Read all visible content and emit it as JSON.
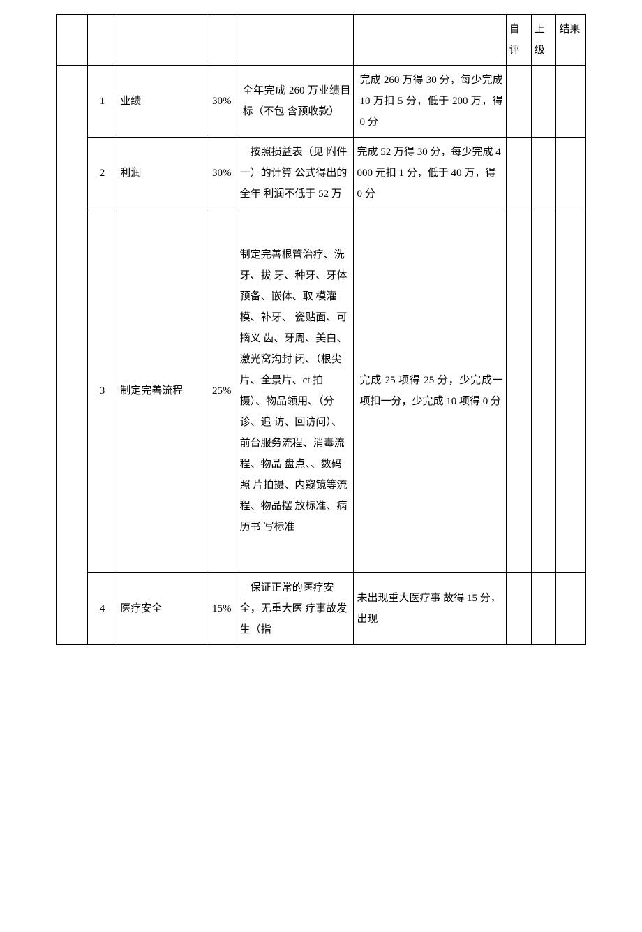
{
  "header": {
    "self": "自评",
    "super": "上级",
    "result": "结果"
  },
  "rows": [
    {
      "num": "1",
      "item": "业绩",
      "weight": "30%",
      "target": "全年完成 260 万业绩目标（不包 含预收款）",
      "standard": "完成 260 万得 30 分，每少完成 10 万扣 5 分，低于 200 万，得 0 分"
    },
    {
      "num": "2",
      "item": "利润",
      "weight": "30%",
      "target": "按照损益表（见 附件一）的计算 公式得出的全年 利润不低于 52 万",
      "standard": "完成 52 万得 30 分，每少完成 4000 元扣 1 分，低于 40 万，得 0 分"
    },
    {
      "num": "3",
      "item": "制定完善流程",
      "weight": "25%",
      "target": "制定完善根管治疗、洗牙、拔 牙、种牙、牙体 预备、嵌体、取 模灌模、补牙、 瓷贴面、可摘义 齿、牙周、美白、激光窝沟封 闭、（根尖片、全景片、ct 拍 摄）、物品领用、（分诊、追 访、回访问）、 前台服务流程、消毒流程、物品 盘点、、数码照 片拍摄、内窥镜等流程、物品摆 放标准、病历书 写标准",
      "standard": "完成 25 项得 25 分，少完成一项扣一分，少完成 10 项得 0 分"
    },
    {
      "num": "4",
      "item": "医疗安全",
      "weight": "15%",
      "target": "保证正常的医疗安全，无重大医 疗事故发生（指",
      "standard": "未出现重大医疗事 故得 15 分，出现"
    }
  ],
  "style": {
    "border_color": "#000000",
    "background_color": "#ffffff",
    "text_color": "#000000",
    "font_family": "SimSun",
    "base_font_size": 15,
    "line_height": 2.0,
    "column_widths": {
      "spacer": 40,
      "num": 38,
      "item": 115,
      "weight": 38,
      "target": 150,
      "standard": 195,
      "self": 32,
      "super": 32,
      "result": 38
    }
  }
}
